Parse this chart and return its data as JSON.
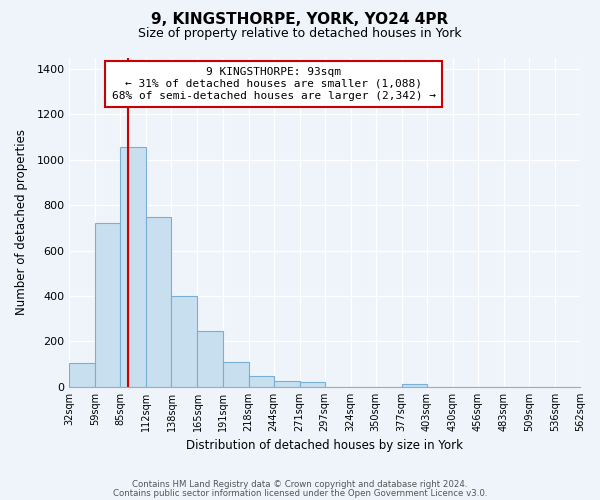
{
  "title": "9, KINGSTHORPE, YORK, YO24 4PR",
  "subtitle": "Size of property relative to detached houses in York",
  "xlabel": "Distribution of detached houses by size in York",
  "ylabel": "Number of detached properties",
  "bar_fill_color": "#c8dff0",
  "bar_edge_color": "#7aafd4",
  "property_line_x": 93,
  "property_line_color": "#cc0000",
  "annotation_title": "9 KINGSTHORPE: 93sqm",
  "annotation_line1": "← 31% of detached houses are smaller (1,088)",
  "annotation_line2": "68% of semi-detached houses are larger (2,342) →",
  "annotation_box_color": "#ffffff",
  "annotation_box_edge": "#cc0000",
  "bin_edges": [
    32,
    59,
    85,
    112,
    138,
    165,
    191,
    218,
    244,
    271,
    297,
    324,
    350,
    377,
    403,
    430,
    456,
    483,
    509,
    536,
    562
  ],
  "bin_heights": [
    105,
    720,
    1055,
    750,
    400,
    245,
    110,
    48,
    28,
    22,
    0,
    0,
    0,
    12,
    0,
    0,
    0,
    0,
    0,
    0
  ],
  "ylim": [
    0,
    1450
  ],
  "yticks": [
    0,
    200,
    400,
    600,
    800,
    1000,
    1200,
    1400
  ],
  "footer_line1": "Contains HM Land Registry data © Crown copyright and database right 2024.",
  "footer_line2": "Contains public sector information licensed under the Open Government Licence v3.0.",
  "bg_color": "#eef4fa",
  "plot_bg_color": "#eef4fa",
  "grid_color": "#ffffff",
  "title_fontsize": 11,
  "subtitle_fontsize": 9,
  "tick_labels": [
    "32sqm",
    "59sqm",
    "85sqm",
    "112sqm",
    "138sqm",
    "165sqm",
    "191sqm",
    "218sqm",
    "244sqm",
    "271sqm",
    "297sqm",
    "324sqm",
    "350sqm",
    "377sqm",
    "403sqm",
    "430sqm",
    "456sqm",
    "483sqm",
    "509sqm",
    "536sqm",
    "562sqm"
  ]
}
